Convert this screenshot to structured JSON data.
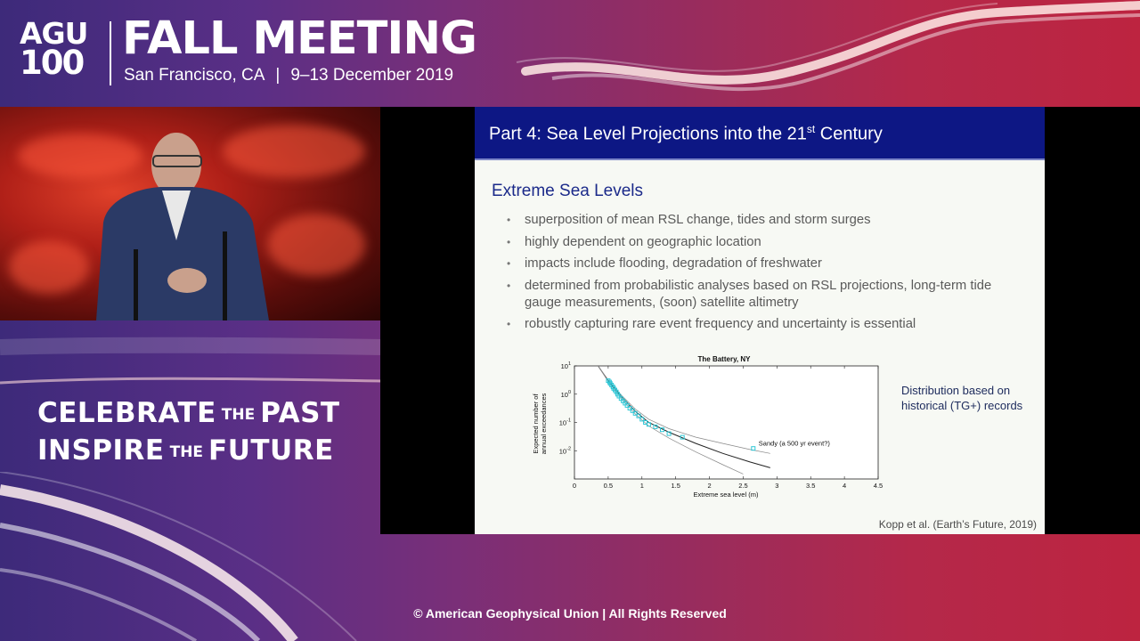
{
  "header": {
    "logo_line1": "AGU",
    "logo_line2": "100",
    "title": "FALL MEETING",
    "location": "San Francisco, CA",
    "separator": "|",
    "dates": "9–13 December 2019"
  },
  "slogan": {
    "line1_a": "CELEBRATE",
    "line1_the": "THE",
    "line1_b": "PAST",
    "line2_a": "INSPIRE",
    "line2_the": "THE",
    "line2_b": "FUTURE"
  },
  "slide": {
    "title_main": "Part 4: Sea Level Projections into the 21",
    "title_sup": "st",
    "title_end": " Century",
    "section": "Extreme Sea Levels",
    "bullets": [
      "superposition of mean RSL change, tides and storm surges",
      "highly dependent on geographic location",
      "impacts include flooding, degradation of freshwater",
      "determined from probabilistic analyses based on RSL projections, long-term tide gauge measurements, (soon) satellite altimetry",
      "robustly capturing rare event frequency and uncertainty is essential"
    ],
    "side_note": "Distribution based on historical (TG+) records",
    "citation": "Kopp et al. (Earth’s Future,  2019)"
  },
  "chart_data": {
    "type": "scatter",
    "title": "The Battery, NY",
    "xlabel": "Extreme sea level (m)",
    "ylabel": "Expected number of annual exceedances",
    "xlim": [
      0,
      4.5
    ],
    "ylim_log10": [
      -3,
      1
    ],
    "y_scale": "log",
    "x_ticks": [
      "0",
      "0.5",
      "1",
      "1.5",
      "2",
      "2.5",
      "3",
      "3.5",
      "4",
      "4.5"
    ],
    "y_ticks": [
      {
        "base": "10",
        "exp": "1",
        "log": 1
      },
      {
        "base": "10",
        "exp": "0",
        "log": 0
      },
      {
        "base": "10",
        "exp": "-1",
        "log": -1
      },
      {
        "base": "10",
        "exp": "-2",
        "log": -2
      }
    ],
    "annotation": "Sandy (a 500 yr event?)",
    "points": [
      {
        "x": 0.5,
        "y": 3.0
      },
      {
        "x": 0.52,
        "y": 2.7
      },
      {
        "x": 0.53,
        "y": 2.4
      },
      {
        "x": 0.55,
        "y": 2.1
      },
      {
        "x": 0.57,
        "y": 1.8
      },
      {
        "x": 0.58,
        "y": 1.6
      },
      {
        "x": 0.6,
        "y": 1.4
      },
      {
        "x": 0.62,
        "y": 1.2
      },
      {
        "x": 0.64,
        "y": 1.0
      },
      {
        "x": 0.66,
        "y": 0.85
      },
      {
        "x": 0.69,
        "y": 0.7
      },
      {
        "x": 0.72,
        "y": 0.58
      },
      {
        "x": 0.75,
        "y": 0.48
      },
      {
        "x": 0.78,
        "y": 0.4
      },
      {
        "x": 0.82,
        "y": 0.32
      },
      {
        "x": 0.86,
        "y": 0.26
      },
      {
        "x": 0.9,
        "y": 0.21
      },
      {
        "x": 0.95,
        "y": 0.17
      },
      {
        "x": 1.0,
        "y": 0.13
      },
      {
        "x": 1.05,
        "y": 0.1
      },
      {
        "x": 1.1,
        "y": 0.085
      },
      {
        "x": 1.2,
        "y": 0.07
      },
      {
        "x": 1.3,
        "y": 0.055
      },
      {
        "x": 1.4,
        "y": 0.04
      },
      {
        "x": 1.6,
        "y": 0.03
      },
      {
        "x": 2.65,
        "y": 0.012
      }
    ],
    "curves": [
      {
        "name": "",
        "points": [
          [
            0.35,
            10
          ],
          [
            0.5,
            3
          ],
          [
            0.7,
            0.8
          ],
          [
            0.9,
            0.25
          ],
          [
            1.1,
            0.1
          ],
          [
            1.4,
            0.045
          ],
          [
            1.8,
            0.018
          ],
          [
            2.2,
            0.008
          ],
          [
            2.6,
            0.004
          ],
          [
            2.9,
            0.0025
          ]
        ]
      },
      {
        "name": "",
        "points": [
          [
            0.35,
            10
          ],
          [
            0.5,
            3.2
          ],
          [
            0.7,
            0.9
          ],
          [
            0.9,
            0.3
          ],
          [
            1.1,
            0.13
          ],
          [
            1.4,
            0.06
          ],
          [
            1.8,
            0.03
          ],
          [
            2.2,
            0.018
          ],
          [
            2.6,
            0.011
          ],
          [
            2.9,
            0.008
          ]
        ]
      },
      {
        "name": "",
        "points": [
          [
            0.35,
            10
          ],
          [
            0.5,
            2.8
          ],
          [
            0.7,
            0.7
          ],
          [
            0.9,
            0.2
          ],
          [
            1.1,
            0.075
          ],
          [
            1.4,
            0.028
          ],
          [
            1.8,
            0.009
          ],
          [
            2.2,
            0.0032
          ],
          [
            2.5,
            0.0015
          ]
        ]
      }
    ],
    "colors": {
      "points": "#2ec7d6",
      "curve": "#222222",
      "curve_light": "#888888"
    }
  },
  "copyright": "© American Geophysical Union | All Rights Reserved"
}
